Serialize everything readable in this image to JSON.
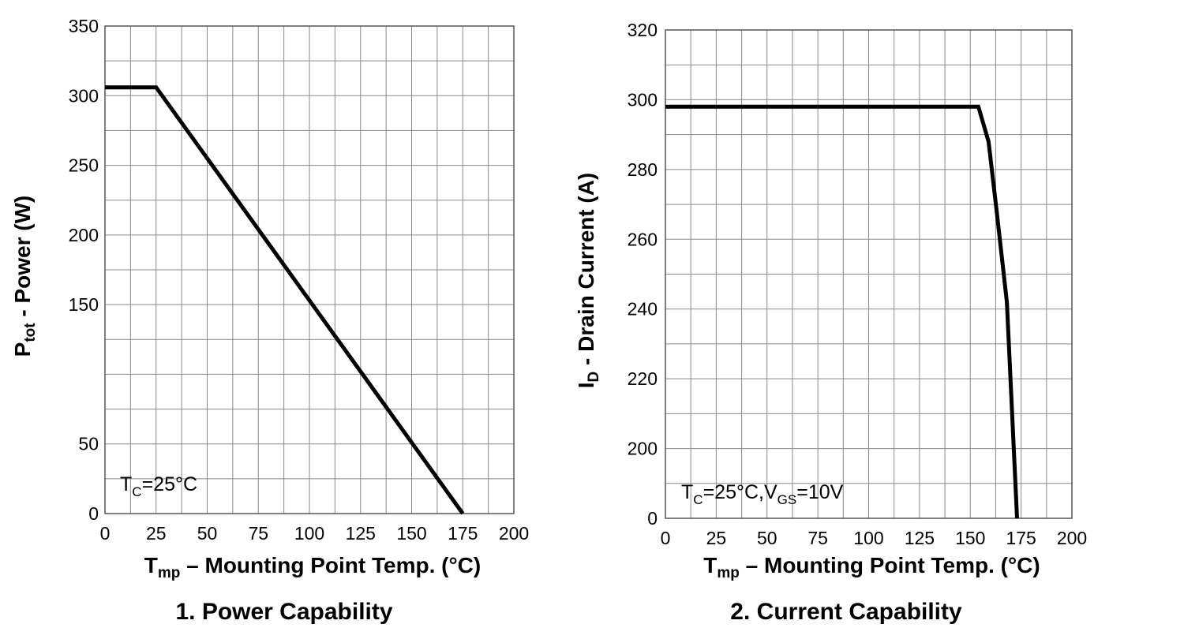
{
  "chart_data": [
    {
      "id": "power",
      "type": "line",
      "title": "1. Power Capability",
      "title_parts": {
        "number": "1.",
        "text": "Power Capability"
      },
      "xlabel_parts": {
        "main": "T",
        "sub": "mp",
        "rest": " – Mounting Point Temp.  (°C)"
      },
      "ylabel_parts": {
        "main": "P",
        "sub": "tot",
        "rest": " - Power (W)"
      },
      "xlim": [
        0,
        200
      ],
      "ylim": [
        0,
        350
      ],
      "x_ticks": [
        0,
        25,
        50,
        75,
        100,
        125,
        150,
        175,
        200
      ],
      "y_ticks": [
        0,
        50,
        150,
        200,
        250,
        300,
        350
      ],
      "x_grid_step": 12.5,
      "y_grid_step": 25,
      "grid": true,
      "annotation": {
        "parts": [
          {
            "t": "T",
            "sub": false
          },
          {
            "t": "C",
            "sub": true
          },
          {
            "t": "=25°C",
            "sub": false
          }
        ]
      },
      "series": [
        {
          "name": "Ptot",
          "x": [
            0,
            25,
            175
          ],
          "y": [
            306,
            306,
            0
          ]
        }
      ]
    },
    {
      "id": "current",
      "type": "line",
      "title": "2. Current Capability",
      "title_parts": {
        "number": "2.",
        "text": "Current Capability"
      },
      "xlabel_parts": {
        "main": "T",
        "sub": "mp",
        "rest": " – Mounting Point Temp.  (°C)"
      },
      "ylabel_parts": {
        "main": "I",
        "sub": "D",
        "rest": " - Drain Current (A)"
      },
      "xlim": [
        0,
        200
      ],
      "ylim": [
        180,
        320
      ],
      "y_tick_labels_override": {
        "180": "0"
      },
      "x_ticks": [
        0,
        25,
        50,
        75,
        100,
        125,
        150,
        175,
        200
      ],
      "y_ticks": [
        180,
        200,
        220,
        240,
        260,
        280,
        300,
        320
      ],
      "x_grid_step": 12.5,
      "y_grid_step": 10,
      "grid": true,
      "annotation": {
        "parts": [
          {
            "t": "T",
            "sub": false
          },
          {
            "t": "C",
            "sub": true
          },
          {
            "t": "=25°C,V",
            "sub": false
          },
          {
            "t": "GS",
            "sub": true
          },
          {
            "t": "=10V",
            "sub": false
          }
        ]
      },
      "series": [
        {
          "name": "ID",
          "x": [
            0,
            154,
            159,
            163,
            168,
            173
          ],
          "y": [
            298,
            298,
            288,
            268,
            242,
            180
          ]
        }
      ]
    }
  ]
}
